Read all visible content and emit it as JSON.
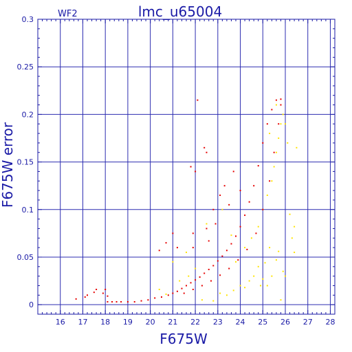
{
  "chart_data": {
    "type": "scatter",
    "title": "lmc_u65004",
    "panel_label": "WF2",
    "xlabel": "F675W",
    "ylabel": "F675W error",
    "xlim": [
      15,
      28.2
    ],
    "ylim": [
      -0.01,
      0.3
    ],
    "xticks": [
      16,
      17,
      18,
      19,
      20,
      21,
      22,
      23,
      24,
      25,
      26,
      27,
      28
    ],
    "yticks": [
      0,
      0.05,
      0.1,
      0.15,
      0.2,
      0.25,
      0.3
    ],
    "xtick_labels": [
      "16",
      "17",
      "18",
      "19",
      "20",
      "21",
      "22",
      "23",
      "24",
      "25",
      "26",
      "27",
      "28"
    ],
    "ytick_labels": [
      "0",
      "0.05",
      "0.1",
      "0.15",
      "0.2",
      "0.25",
      "0.3"
    ],
    "grid": true,
    "colors": {
      "axis": "#1a1aa6",
      "grid": "#2b2bb0",
      "series_red": "#e60000",
      "series_yellow": "#ffe400"
    },
    "series": [
      {
        "color": "#e60000",
        "points": [
          [
            16.7,
            0.006
          ],
          [
            17.1,
            0.008
          ],
          [
            17.2,
            0.01
          ],
          [
            17.5,
            0.013
          ],
          [
            17.6,
            0.016
          ],
          [
            17.9,
            0.012
          ],
          [
            18.0,
            0.016
          ],
          [
            18.1,
            0.009
          ],
          [
            18.1,
            0.003
          ],
          [
            18.3,
            0.003
          ],
          [
            18.5,
            0.003
          ],
          [
            18.7,
            0.003
          ],
          [
            19.0,
            0.003
          ],
          [
            19.3,
            0.003
          ],
          [
            19.6,
            0.004
          ],
          [
            19.9,
            0.005
          ],
          [
            20.2,
            0.007
          ],
          [
            20.5,
            0.008
          ],
          [
            20.8,
            0.01
          ],
          [
            21.0,
            0.012
          ],
          [
            21.2,
            0.014
          ],
          [
            21.4,
            0.017
          ],
          [
            21.6,
            0.02
          ],
          [
            21.8,
            0.023
          ],
          [
            22.0,
            0.026
          ],
          [
            22.2,
            0.029
          ],
          [
            22.4,
            0.033
          ],
          [
            22.6,
            0.037
          ],
          [
            22.8,
            0.041
          ],
          [
            23.0,
            0.046
          ],
          [
            23.2,
            0.051
          ],
          [
            23.4,
            0.057
          ],
          [
            23.6,
            0.064
          ],
          [
            23.8,
            0.072
          ],
          [
            24.0,
            0.082
          ],
          [
            24.2,
            0.094
          ],
          [
            24.4,
            0.108
          ],
          [
            24.6,
            0.125
          ],
          [
            24.8,
            0.146
          ],
          [
            25.0,
            0.17
          ],
          [
            25.2,
            0.19
          ],
          [
            25.4,
            0.205
          ],
          [
            25.6,
            0.215
          ],
          [
            25.8,
            0.216
          ],
          [
            21.5,
            0.012
          ],
          [
            21.9,
            0.016
          ],
          [
            22.3,
            0.02
          ],
          [
            22.7,
            0.025
          ],
          [
            23.1,
            0.031
          ],
          [
            23.5,
            0.038
          ],
          [
            23.9,
            0.047
          ],
          [
            24.3,
            0.058
          ],
          [
            24.7,
            0.075
          ],
          [
            25.0,
            0.1
          ],
          [
            25.3,
            0.13
          ],
          [
            25.5,
            0.16
          ],
          [
            25.7,
            0.19
          ],
          [
            25.8,
            0.21
          ],
          [
            22.1,
            0.215
          ],
          [
            22.4,
            0.165
          ],
          [
            22.0,
            0.14
          ],
          [
            21.8,
            0.145
          ],
          [
            22.5,
            0.16
          ],
          [
            23.1,
            0.115
          ],
          [
            23.3,
            0.125
          ],
          [
            23.7,
            0.14
          ],
          [
            21.0,
            0.075
          ],
          [
            21.9,
            0.075
          ],
          [
            22.8,
            0.1
          ],
          [
            23.5,
            0.105
          ],
          [
            24.0,
            0.12
          ],
          [
            22.5,
            0.08
          ],
          [
            21.2,
            0.06
          ],
          [
            20.7,
            0.065
          ],
          [
            20.4,
            0.057
          ],
          [
            21.9,
            0.06
          ],
          [
            22.6,
            0.067
          ],
          [
            22.9,
            0.085
          ]
        ]
      },
      {
        "color": "#ffe400",
        "points": [
          [
            20.4,
            0.016
          ],
          [
            20.7,
            0.011
          ],
          [
            21.3,
            0.025
          ],
          [
            21.7,
            0.03
          ],
          [
            22.0,
            0.038
          ],
          [
            22.3,
            0.005
          ],
          [
            22.8,
            0.004
          ],
          [
            23.1,
            0.012
          ],
          [
            23.4,
            0.01
          ],
          [
            23.7,
            0.015
          ],
          [
            24.0,
            0.02
          ],
          [
            24.2,
            0.018
          ],
          [
            24.4,
            0.025
          ],
          [
            24.6,
            0.03
          ],
          [
            24.8,
            0.04
          ],
          [
            24.9,
            0.02
          ],
          [
            25.0,
            0.027
          ],
          [
            25.1,
            0.044
          ],
          [
            25.2,
            0.02
          ],
          [
            25.3,
            0.06
          ],
          [
            25.4,
            0.03
          ],
          [
            25.6,
            0.047
          ],
          [
            25.7,
            0.056
          ],
          [
            25.9,
            0.035
          ],
          [
            23.8,
            0.045
          ],
          [
            24.2,
            0.06
          ],
          [
            24.5,
            0.07
          ],
          [
            24.8,
            0.082
          ],
          [
            25.0,
            0.1
          ],
          [
            25.2,
            0.115
          ],
          [
            25.4,
            0.13
          ],
          [
            25.5,
            0.145
          ],
          [
            25.6,
            0.16
          ],
          [
            25.7,
            0.175
          ],
          [
            25.8,
            0.19
          ],
          [
            25.9,
            0.2
          ],
          [
            25.6,
            0.21
          ],
          [
            25.3,
            0.18
          ],
          [
            26.0,
            0.19
          ],
          [
            26.1,
            0.17
          ],
          [
            26.5,
            0.165
          ],
          [
            26.2,
            0.095
          ],
          [
            26.4,
            0.082
          ],
          [
            26.3,
            0.07
          ],
          [
            26.4,
            0.055
          ],
          [
            26.0,
            0.03
          ],
          [
            25.8,
            0.005
          ],
          [
            23.6,
            0.073
          ],
          [
            22.5,
            0.085
          ],
          [
            21.0,
            0.045
          ],
          [
            21.6,
            0.055
          ],
          [
            23.2,
            0.1
          ]
        ]
      }
    ]
  }
}
